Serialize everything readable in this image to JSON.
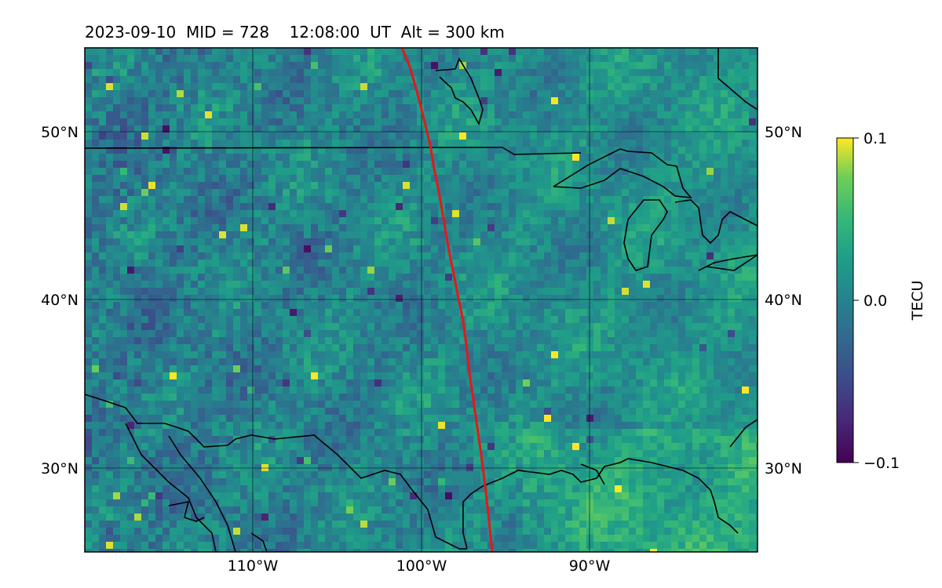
{
  "title": "2023-09-10  MID = 728    12:08:00  UT  Alt = 300 km",
  "map": {
    "lat_ticks": [
      "50°N",
      "40°N",
      "30°N"
    ],
    "lon_ticks": [
      "110°W",
      "100°W",
      "90°W"
    ],
    "lat_values": [
      50,
      40,
      30
    ],
    "lon_values": [
      -110,
      -100,
      -90
    ],
    "extent": {
      "lon": [
        -120,
        -80
      ],
      "lat": [
        25,
        55
      ]
    },
    "field_name": "TEC perturbation",
    "colormap": "viridis",
    "track_color": "#e8161a",
    "coast_color": "#000000"
  },
  "colorbar": {
    "label": "TECU",
    "ticks": [
      "0.1",
      "0.0",
      "−0.1"
    ],
    "range": [
      -0.1,
      0.1
    ]
  }
}
